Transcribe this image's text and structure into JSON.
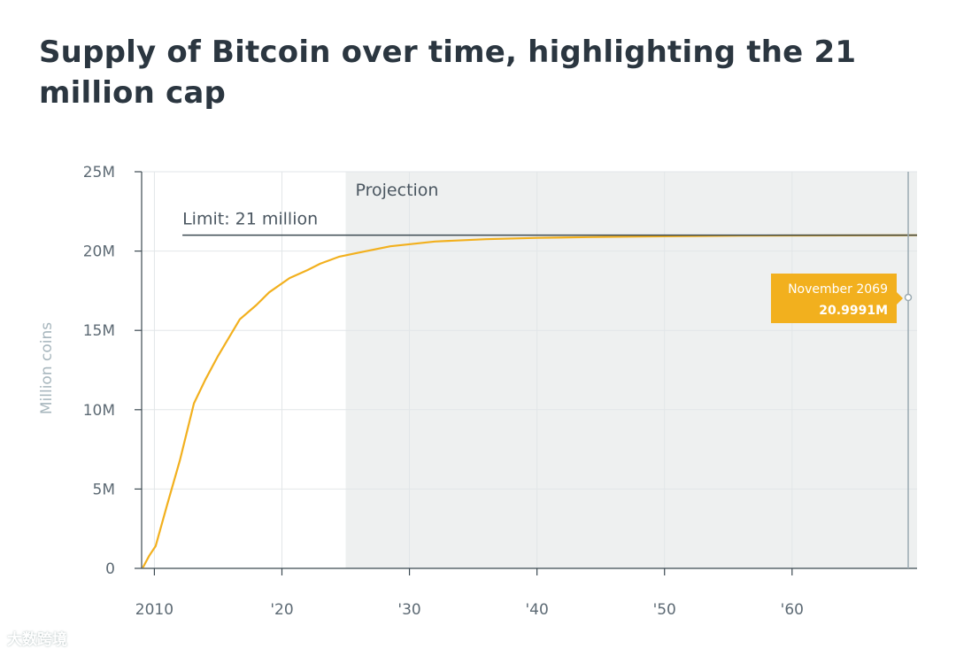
{
  "chart_data": {
    "type": "line",
    "title": "Supply of Bitcoin over time, highlighting the 21 million cap",
    "ylabel": "Million coins",
    "xlabel": "",
    "x_tick_labels": [
      "2010",
      "'20",
      "'30",
      "'40",
      "'50",
      "'60"
    ],
    "x_ticks": [
      2010,
      2020,
      2030,
      2040,
      2050,
      2060
    ],
    "y_tick_labels": [
      "0",
      "5M",
      "10M",
      "15M",
      "20M",
      "25M"
    ],
    "y_ticks": [
      0,
      5,
      10,
      15,
      20,
      25
    ],
    "xlim": [
      2009,
      2069.8
    ],
    "ylim": [
      0,
      25
    ],
    "grid": true,
    "series": [
      {
        "color": "#f2b01e",
        "x": [
          2009.1,
          2009.6,
          2010.1,
          2011,
          2012,
          2013.1,
          2014,
          2015,
          2016.7,
          2018,
          2019,
          2020.6,
          2022,
          2023,
          2024.5,
          2026,
          2028.5,
          2032,
          2036,
          2040,
          2044,
          2048,
          2052,
          2056,
          2060,
          2064,
          2069.8
        ],
        "y": [
          0.05,
          0.8,
          1.4,
          4.0,
          6.8,
          10.4,
          11.9,
          13.4,
          15.7,
          16.6,
          17.4,
          18.3,
          18.8,
          19.2,
          19.65,
          19.9,
          20.3,
          20.6,
          20.75,
          20.83,
          20.88,
          20.92,
          20.95,
          20.97,
          20.98,
          20.99,
          21.0
        ]
      }
    ],
    "reference_line": {
      "value": 21,
      "label": "Limit: 21 million",
      "color": "#3c4a52"
    },
    "shaded_region": {
      "from": 2025,
      "to": 2069.8,
      "label": "Projection",
      "color": "#eef0f0"
    },
    "tooltip": {
      "x": 2069.8,
      "date": "November 2069",
      "value": "20.9991M",
      "color": "#f2b01e"
    }
  },
  "watermark": "大数跨境"
}
